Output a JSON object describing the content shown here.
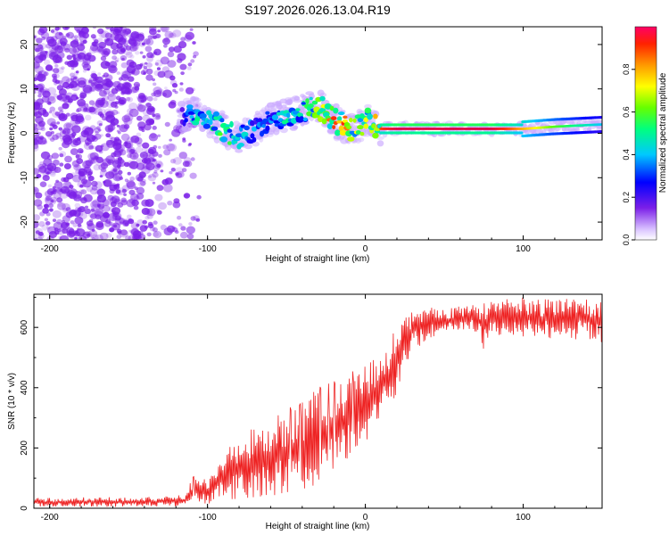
{
  "figure_title": "S197.2026.026.13.04.R19",
  "colors": {
    "snr_line": "#ee2222",
    "axis": "#000000",
    "ridge_core": "#dd1111",
    "scatter": "#7b1fe8"
  },
  "chart_data": [
    {
      "type": "heatmap",
      "title": "S197.2026.026.13.04.R19",
      "xlabel": "Height of straight line (km)",
      "ylabel": "Frequency (Hz)",
      "xlim": [
        -210,
        150
      ],
      "ylim": [
        -24,
        24
      ],
      "xticks": [
        -200,
        -100,
        0,
        100
      ],
      "yticks": [
        -20,
        -10,
        0,
        10,
        20
      ],
      "colorbar": {
        "label": "Normalized spectral amplitude",
        "range": [
          0,
          1
        ],
        "ticks": [
          0.0,
          0.2,
          0.4,
          0.6,
          0.8
        ],
        "tick_labels": [
          "0.0",
          "0.2",
          "0.4",
          "0.6",
          "0.8"
        ],
        "colormap": "rainbow"
      },
      "ridge": {
        "x": [
          -115,
          -110,
          -100,
          -90,
          -80,
          -70,
          -60,
          -50,
          -40,
          -35,
          -30,
          -25,
          -20,
          -15,
          -10,
          -5,
          0,
          5,
          10,
          20,
          40,
          60,
          80,
          100,
          120,
          150
        ],
        "frequency": [
          4,
          5,
          3,
          1,
          -1,
          1,
          3,
          4,
          5,
          6,
          6,
          5,
          3,
          2,
          1,
          1,
          3,
          2,
          1,
          1,
          1,
          1,
          1,
          1,
          1.5,
          2
        ],
        "amplitude": [
          0.2,
          0.5,
          0.5,
          0.6,
          0.5,
          0.4,
          0.4,
          0.5,
          0.5,
          0.6,
          0.7,
          0.8,
          0.9,
          0.9,
          0.8,
          0.7,
          0.7,
          0.8,
          0.9,
          1.0,
          1.0,
          1.0,
          1.0,
          0.8,
          0.6,
          0.4
        ]
      },
      "noise_region_x": [
        -210,
        -105
      ]
    },
    {
      "type": "line",
      "xlabel": "Height of straight line (km)",
      "ylabel": "SNR (10 * v/v)",
      "xlim": [
        -210,
        150
      ],
      "ylim": [
        0,
        710
      ],
      "xticks": [
        -200,
        -100,
        0,
        100
      ],
      "yticks": [
        0,
        200,
        400,
        600
      ],
      "series": [
        {
          "name": "SNR",
          "x": [
            -210,
            -190,
            -170,
            -150,
            -130,
            -115,
            -110,
            -105,
            -100,
            -90,
            -80,
            -70,
            -60,
            -50,
            -40,
            -30,
            -20,
            -10,
            0,
            10,
            20,
            25,
            30,
            40,
            50,
            60,
            70,
            75,
            80,
            90,
            100,
            110,
            120,
            130,
            140,
            150
          ],
          "values": [
            20,
            20,
            20,
            20,
            22,
            25,
            50,
            60,
            40,
            80,
            90,
            110,
            130,
            150,
            170,
            200,
            260,
            300,
            360,
            430,
            480,
            520,
            560,
            600,
            610,
            620,
            625,
            560,
            610,
            620,
            630,
            620,
            615,
            620,
            620,
            615
          ],
          "envelope_low": [
            5,
            5,
            5,
            5,
            5,
            5,
            10,
            15,
            10,
            20,
            30,
            35,
            40,
            50,
            60,
            80,
            120,
            160,
            220,
            300,
            380,
            460,
            520,
            560,
            570,
            580,
            580,
            520,
            570,
            570,
            570,
            560,
            560,
            560,
            560,
            550
          ],
          "envelope_high": [
            35,
            35,
            38,
            35,
            40,
            45,
            100,
            120,
            80,
            200,
            220,
            280,
            300,
            330,
            350,
            400,
            420,
            450,
            470,
            520,
            600,
            640,
            660,
            670,
            670,
            680,
            690,
            680,
            690,
            700,
            700,
            700,
            690,
            700,
            700,
            690
          ]
        }
      ]
    }
  ]
}
